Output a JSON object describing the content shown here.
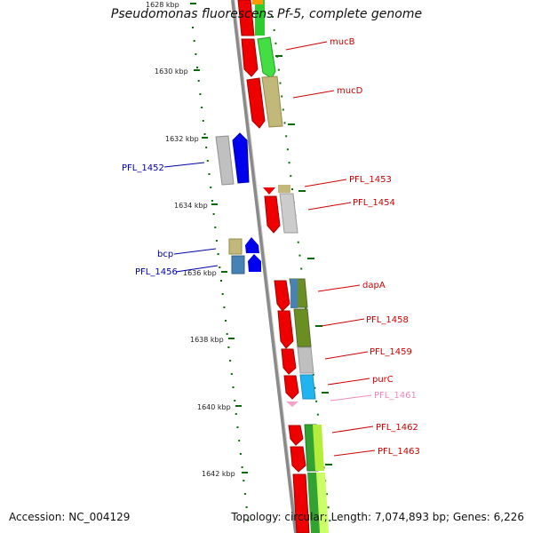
{
  "title": "Pseudomonas fluorescens Pf-5, complete genome",
  "footer": {
    "accession": "Accession: NC_004129",
    "summary": "Topology: circular; Length: 7,074,893 bp; Genes: 6,226"
  },
  "ticks": [
    "1628 kbp",
    "1630 kbp",
    "1632 kbp",
    "1634 kbp",
    "1636 kbp",
    "1638 kbp",
    "1640 kbp",
    "1642 kbp"
  ],
  "genes": [
    {
      "id": "mucB",
      "label": "mucB",
      "color": "#cc0000"
    },
    {
      "id": "mucD",
      "label": "mucD",
      "color": "#cc0000"
    },
    {
      "id": "PFL_1452",
      "label": "PFL_1452",
      "color": "#0000aa"
    },
    {
      "id": "PFL_1453",
      "label": "PFL_1453",
      "color": "#cc0000"
    },
    {
      "id": "PFL_1454",
      "label": "PFL_1454",
      "color": "#cc0000"
    },
    {
      "id": "bcp",
      "label": "bcp",
      "color": "#0000aa"
    },
    {
      "id": "PFL_1456",
      "label": "PFL_1456",
      "color": "#0000aa"
    },
    {
      "id": "dapA",
      "label": "dapA",
      "color": "#cc0000"
    },
    {
      "id": "PFL_1458",
      "label": "PFL_1458",
      "color": "#cc0000"
    },
    {
      "id": "PFL_1459",
      "label": "PFL_1459",
      "color": "#cc0000"
    },
    {
      "id": "purC",
      "label": "purC",
      "color": "#cc0000"
    },
    {
      "id": "PFL_1461",
      "label": "PFL_1461",
      "color": "#ee88bb"
    },
    {
      "id": "PFL_1462",
      "label": "PFL_1462",
      "color": "#cc0000"
    },
    {
      "id": "PFL_1463",
      "label": "PFL_1463",
      "color": "#cc0000"
    }
  ],
  "colors": {
    "backbone": "#888888",
    "tick": "#006600",
    "forward": "#ee0000",
    "reverse": "#0000ee"
  }
}
